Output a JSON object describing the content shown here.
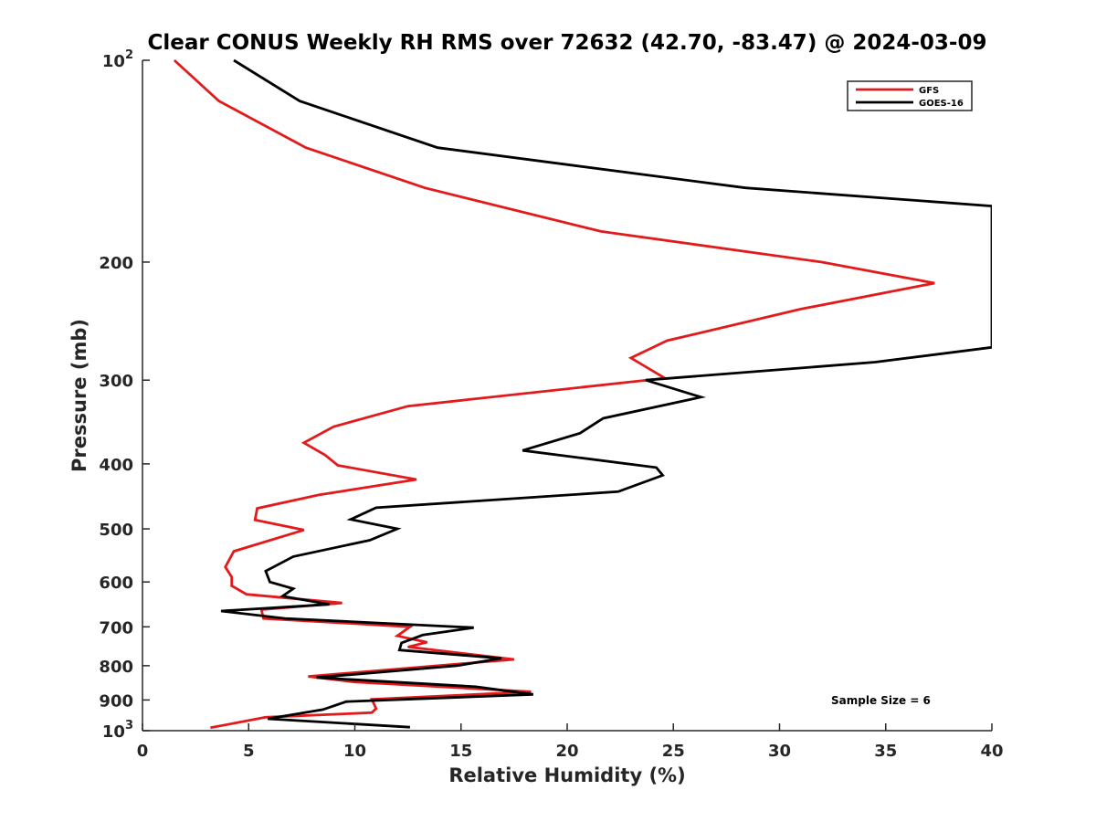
{
  "chart_data": {
    "type": "line",
    "title": "Clear CONUS Weekly RH RMS over 72632 (42.70, -83.47) @ 2024-03-09",
    "xlabel": "Relative Humidity (%)",
    "ylabel": "Pressure (mb)",
    "xlim": [
      0,
      40
    ],
    "ylim": [
      100,
      1000
    ],
    "y_scale": "log",
    "y_reversed": true,
    "grid": false,
    "legend_position": "top-right",
    "x_ticks": [
      "0",
      "5",
      "10",
      "15",
      "20",
      "25",
      "30",
      "35",
      "40"
    ],
    "y_ticks": [
      {
        "value": 100,
        "base": "10",
        "exp": "2"
      },
      {
        "value": 200,
        "base": "200",
        "exp": ""
      },
      {
        "value": 300,
        "base": "300",
        "exp": ""
      },
      {
        "value": 400,
        "base": "400",
        "exp": ""
      },
      {
        "value": 500,
        "base": "500",
        "exp": ""
      },
      {
        "value": 600,
        "base": "600",
        "exp": ""
      },
      {
        "value": 700,
        "base": "700",
        "exp": ""
      },
      {
        "value": 800,
        "base": "800",
        "exp": ""
      },
      {
        "value": 900,
        "base": "900",
        "exp": ""
      },
      {
        "value": 1000,
        "base": "10",
        "exp": "3"
      }
    ],
    "annotation": "Sample Size = 6",
    "series": [
      {
        "name": "GFS",
        "color": "#e31a1c",
        "points": [
          [
            1.5,
            100
          ],
          [
            3.6,
            115
          ],
          [
            7.7,
            135
          ],
          [
            13.3,
            155
          ],
          [
            21.6,
            180
          ],
          [
            32.0,
            200
          ],
          [
            37.3,
            215
          ],
          [
            31.0,
            235
          ],
          [
            24.7,
            262
          ],
          [
            23.0,
            278
          ],
          [
            24.6,
            298
          ],
          [
            12.5,
            328
          ],
          [
            9.0,
            352
          ],
          [
            7.6,
            372
          ],
          [
            8.6,
            388
          ],
          [
            9.2,
            402
          ],
          [
            12.9,
            422
          ],
          [
            8.3,
            445
          ],
          [
            5.4,
            466
          ],
          [
            5.3,
            485
          ],
          [
            7.6,
            502
          ],
          [
            4.3,
            540
          ],
          [
            3.9,
            570
          ],
          [
            4.2,
            590
          ],
          [
            4.2,
            608
          ],
          [
            4.9,
            626
          ],
          [
            9.4,
            645
          ],
          [
            5.6,
            660
          ],
          [
            5.7,
            680
          ],
          [
            12.6,
            700
          ],
          [
            12.0,
            722
          ],
          [
            13.4,
            738
          ],
          [
            12.5,
            750
          ],
          [
            17.5,
            783
          ],
          [
            7.8,
            830
          ],
          [
            10.0,
            846
          ],
          [
            18.3,
            875
          ],
          [
            10.8,
            898
          ],
          [
            11.0,
            927
          ],
          [
            10.8,
            940
          ],
          [
            5.8,
            955
          ],
          [
            3.2,
            990
          ]
        ]
      },
      {
        "name": "GOES-16",
        "color": "#000000",
        "points": [
          [
            4.3,
            100
          ],
          [
            7.4,
            115
          ],
          [
            13.9,
            135
          ],
          [
            28.4,
            155
          ],
          [
            40.0,
            165
          ],
          [
            40.0,
            268
          ],
          [
            34.5,
            282
          ],
          [
            23.7,
            300
          ],
          [
            26.3,
            318
          ],
          [
            21.7,
            342
          ],
          [
            20.6,
            360
          ],
          [
            17.9,
            382
          ],
          [
            24.2,
            405
          ],
          [
            24.5,
            416
          ],
          [
            22.4,
            440
          ],
          [
            11.0,
            465
          ],
          [
            9.8,
            484
          ],
          [
            12.0,
            500
          ],
          [
            10.7,
            520
          ],
          [
            7.1,
            550
          ],
          [
            5.8,
            578
          ],
          [
            6.0,
            600
          ],
          [
            7.1,
            614
          ],
          [
            6.6,
            630
          ],
          [
            8.8,
            648
          ],
          [
            3.7,
            663
          ],
          [
            6.7,
            680
          ],
          [
            15.6,
            702
          ],
          [
            13.2,
            720
          ],
          [
            12.2,
            740
          ],
          [
            12.1,
            758
          ],
          [
            16.9,
            780
          ],
          [
            14.8,
            800
          ],
          [
            8.2,
            833
          ],
          [
            15.7,
            860
          ],
          [
            18.4,
            883
          ],
          [
            9.6,
            905
          ],
          [
            8.5,
            930
          ],
          [
            5.9,
            960
          ],
          [
            12.6,
            988
          ]
        ]
      }
    ]
  }
}
